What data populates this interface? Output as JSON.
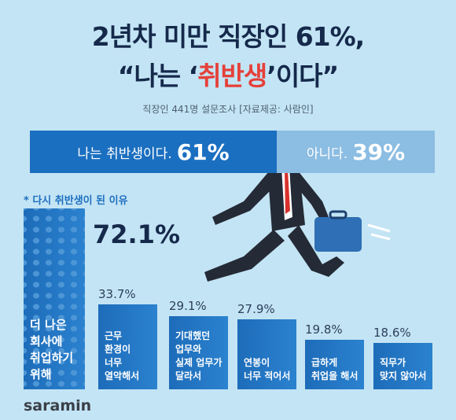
{
  "header": {
    "title": "2년차 미만 직장인 61%,",
    "quote_before": "“나는 ‘",
    "quote_highlight": "취반생",
    "quote_after": "’이다”",
    "subtitle": "직장인 441명 설문조사 [자료제공: 사람인]"
  },
  "chart_data": [
    {
      "type": "stacked_hbar",
      "xlim": [
        0,
        100
      ],
      "series": [
        {
          "name": "나는 취반생이다.",
          "color": "#1b6fc0",
          "values": [
            61
          ],
          "value_labels": [
            "61%"
          ]
        },
        {
          "name": "아니다.",
          "color": "#8cbde2",
          "values": [
            39
          ],
          "value_labels": [
            "39%"
          ]
        }
      ]
    },
    {
      "type": "bar",
      "title": "* 다시 취반생이 된 이유",
      "ylim": [
        0,
        72.1
      ],
      "color": "#1d6cb9",
      "categories": [
        "더 나은\n회사에\n취업하기\n위해",
        "근무\n환경이\n너무\n열악해서",
        "기대했던\n업무와\n실제 업무가\n달라서",
        "연봉이\n너무 적어서",
        "급하게\n취업을 해서",
        "직무가\n맞지 않아서"
      ],
      "values": [
        72.1,
        33.7,
        29.1,
        27.9,
        19.8,
        18.6
      ],
      "value_labels": [
        "72.1%",
        "33.7%",
        "29.1%",
        "27.9%",
        "19.8%",
        "18.6%"
      ]
    }
  ],
  "footer": {
    "brand": "saramin"
  }
}
